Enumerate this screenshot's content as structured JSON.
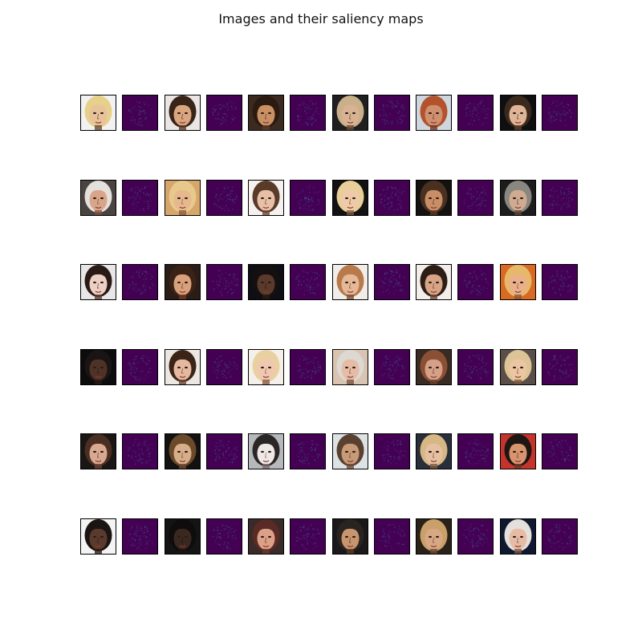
{
  "figure": {
    "title": "Images and their saliency maps"
  },
  "grid": {
    "rows": 6,
    "pairs_per_row": 6
  },
  "colors": {
    "saliency_base": "#440154",
    "saliency_hot": "#3b528b",
    "saliency_mid": "#472c7a"
  },
  "faces": [
    [
      {
        "skin": "#e8c29a",
        "hair": "#e6d08a",
        "bg": "#f2f2f2",
        "shadow": "#6b4a30"
      },
      {
        "skin": "#d9a680",
        "hair": "#3a2418",
        "bg": "#e9e6e4",
        "shadow": "#5a3a28"
      },
      {
        "skin": "#c99063",
        "hair": "#2b1a10",
        "bg": "#3a2a22",
        "shadow": "#5e3b24"
      },
      {
        "skin": "#d8b293",
        "hair": "#c9b08a",
        "bg": "#1f1f1f",
        "shadow": "#6a4a35"
      },
      {
        "skin": "#d08f6f",
        "hair": "#b3532c",
        "bg": "#cfd6de",
        "shadow": "#6d3a24"
      },
      {
        "skin": "#e0b496",
        "hair": "#3b2a1c",
        "bg": "#0f0f12",
        "shadow": "#5e3e2a"
      }
    ],
    [
      {
        "skin": "#d9a58a",
        "hair": "#e4e0dc",
        "bg": "#4a4440",
        "shadow": "#7c4e3a"
      },
      {
        "skin": "#e6b88e",
        "hair": "#e8c98c",
        "bg": "#d6a66a",
        "shadow": "#8a5c3a"
      },
      {
        "skin": "#e8c0a8",
        "hair": "#5a3a28",
        "bg": "#f4f1ee",
        "shadow": "#6a4634"
      },
      {
        "skin": "#efcaa8",
        "hair": "#e8cf9a",
        "bg": "#121212",
        "shadow": "#7a5a3e"
      },
      {
        "skin": "#c88e66",
        "hair": "#4a3020",
        "bg": "#141210",
        "shadow": "#5a3a24"
      },
      {
        "skin": "#d0ab92",
        "hair": "#8a8680",
        "bg": "#1c1c1c",
        "shadow": "#5c4434"
      }
    ],
    [
      {
        "skin": "#ecd0c4",
        "hair": "#2a1a16",
        "bg": "#e8e6e6",
        "shadow": "#5a3a34"
      },
      {
        "skin": "#d9a07c",
        "hair": "#3a2216",
        "bg": "#2a1c16",
        "shadow": "#6a3c24"
      },
      {
        "skin": "#5a3a2a",
        "hair": "#141010",
        "bg": "#0e0e14",
        "shadow": "#2a1a12"
      },
      {
        "skin": "#e6b898",
        "hair": "#b87a4a",
        "bg": "#f1ede9",
        "shadow": "#7a4e30"
      },
      {
        "skin": "#d8a486",
        "hair": "#2c1e16",
        "bg": "#f3eeea",
        "shadow": "#6c4432"
      },
      {
        "skin": "#eab08a",
        "hair": "#e8b86a",
        "bg": "#d86a24",
        "shadow": "#8a5432"
      }
    ],
    [
      {
        "skin": "#4e3226",
        "hair": "#1a1414",
        "bg": "#0c0c0c",
        "shadow": "#2a1a12"
      },
      {
        "skin": "#e6b8a0",
        "hair": "#3a2418",
        "bg": "#ede7e2",
        "shadow": "#6a4230"
      },
      {
        "skin": "#f0c8b0",
        "hair": "#e8d0a0",
        "bg": "#f4efe9",
        "shadow": "#8a5a44"
      },
      {
        "skin": "#e6bca6",
        "hair": "#ddd8d2",
        "bg": "#d8c4b0",
        "shadow": "#7a5240"
      },
      {
        "skin": "#d6a088",
        "hair": "#8a5034",
        "bg": "#3a2a24",
        "shadow": "#6a3e2c"
      },
      {
        "skin": "#ecc6a2",
        "hair": "#dcc496",
        "bg": "#5a4e48",
        "shadow": "#7c5838"
      }
    ],
    [
      {
        "skin": "#d8a890",
        "hair": "#4a2e22",
        "bg": "#1a1614",
        "shadow": "#6a4232"
      },
      {
        "skin": "#d8ae8a",
        "hair": "#6a4a2a",
        "bg": "#141210",
        "shadow": "#6a4a30"
      },
      {
        "skin": "#efe8e6",
        "hair": "#2a2626",
        "bg": "#b6b8bc",
        "shadow": "#7c6a6a"
      },
      {
        "skin": "#c89a78",
        "hair": "#5a4030",
        "bg": "#dde2e4",
        "shadow": "#6a4a34"
      },
      {
        "skin": "#e6c0a0",
        "hair": "#d6b884",
        "bg": "#2a2e3a",
        "shadow": "#7a5a40"
      },
      {
        "skin": "#d8946e",
        "hair": "#1e1612",
        "bg": "#c4342c",
        "shadow": "#6a3a22"
      }
    ],
    [
      {
        "skin": "#5a3a2c",
        "hair": "#1a1412",
        "bg": "#f4f4f4",
        "shadow": "#2e1c14"
      },
      {
        "skin": "#3a2820",
        "hair": "#0e0c0c",
        "bg": "#141414",
        "shadow": "#1e140e"
      },
      {
        "skin": "#dca088",
        "hair": "#5a2a24",
        "bg": "#3a2a2a",
        "shadow": "#6c3a2c"
      },
      {
        "skin": "#c8956e",
        "hair": "#2a2420",
        "bg": "#1a1818",
        "shadow": "#5a3a24"
      },
      {
        "skin": "#d8a884",
        "hair": "#caa06a",
        "bg": "#2a2218",
        "shadow": "#6a4a32"
      },
      {
        "skin": "#e6bca6",
        "hair": "#e4e0dc",
        "bg": "#0e1830",
        "shadow": "#7a5444"
      }
    ]
  ]
}
